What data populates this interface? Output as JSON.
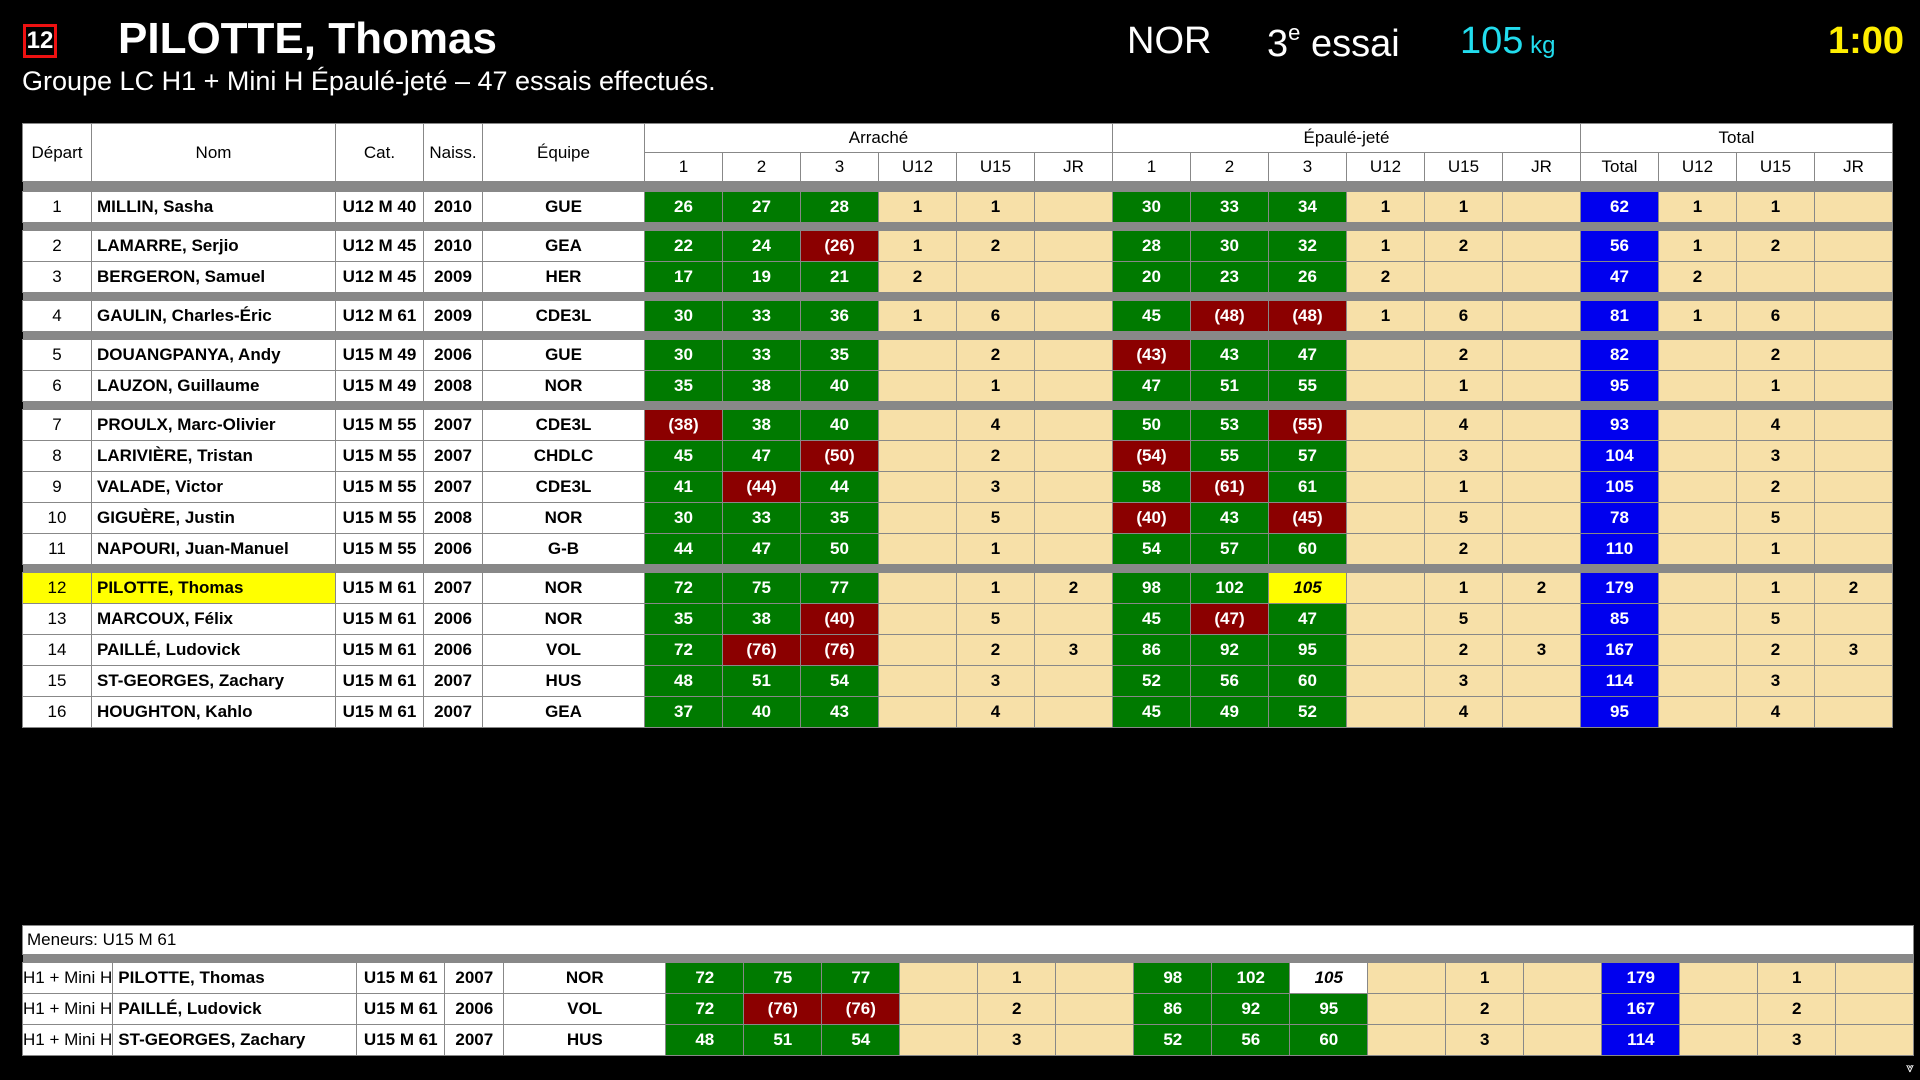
{
  "header": {
    "start_number": "12",
    "athlete": "PILOTTE, Thomas",
    "team": "NOR",
    "attempt_num": "3",
    "attempt_sup": "e",
    "attempt_word": " essai",
    "weight": "105",
    "weight_unit": " kg",
    "clock": "1:00",
    "group_line": "Groupe LC H1 + Mini H Épaulé-jeté – 47 essais effectués."
  },
  "colors": {
    "good": "#007a00",
    "bad": "#8b0000",
    "total": "#0000ee",
    "current": "#ffff00",
    "rank_bg": "#f7e0a8"
  },
  "table": {
    "headers": {
      "start": "Départ",
      "name": "Nom",
      "cat": "Cat.",
      "birth": "Naiss.",
      "team": "Équipe"
    },
    "groups": {
      "snatch": "Arraché",
      "cj": "Épaulé-jeté",
      "total": "Total"
    },
    "sub": [
      "1",
      "2",
      "3",
      "U12",
      "U15",
      "JR",
      "1",
      "2",
      "3",
      "U12",
      "U15",
      "JR",
      "Total",
      "U12",
      "U15",
      "JR"
    ]
  },
  "athletes": [
    {
      "start": "1",
      "name": "MILLIN, Sasha",
      "cat": "U12 M 40",
      "birth": "2010",
      "team": "GUE",
      "sn": [
        [
          "26",
          "g"
        ],
        [
          "27",
          "g"
        ],
        [
          "28",
          "g"
        ]
      ],
      "snr": [
        "1",
        "1",
        ""
      ],
      "cj": [
        [
          "30",
          "g"
        ],
        [
          "33",
          "g"
        ],
        [
          "34",
          "g"
        ]
      ],
      "cjr": [
        "1",
        "1",
        ""
      ],
      "total": "62",
      "tr": [
        "1",
        "1",
        ""
      ],
      "sepBefore": true
    },
    {
      "start": "2",
      "name": "LAMARRE, Serjio",
      "cat": "U12 M 45",
      "birth": "2010",
      "team": "GEA",
      "sn": [
        [
          "22",
          "g"
        ],
        [
          "24",
          "g"
        ],
        [
          "(26)",
          "r"
        ]
      ],
      "snr": [
        "1",
        "2",
        ""
      ],
      "cj": [
        [
          "28",
          "g"
        ],
        [
          "30",
          "g"
        ],
        [
          "32",
          "g"
        ]
      ],
      "cjr": [
        "1",
        "2",
        ""
      ],
      "total": "56",
      "tr": [
        "1",
        "2",
        ""
      ],
      "sepBefore": true
    },
    {
      "start": "3",
      "name": "BERGERON, Samuel",
      "cat": "U12 M 45",
      "birth": "2009",
      "team": "HER",
      "sn": [
        [
          "17",
          "g"
        ],
        [
          "19",
          "g"
        ],
        [
          "21",
          "g"
        ]
      ],
      "snr": [
        "2",
        "",
        ""
      ],
      "cj": [
        [
          "20",
          "g"
        ],
        [
          "23",
          "g"
        ],
        [
          "26",
          "g"
        ]
      ],
      "cjr": [
        "2",
        "",
        ""
      ],
      "total": "47",
      "tr": [
        "2",
        "",
        ""
      ],
      "sepBefore": false
    },
    {
      "start": "4",
      "name": "GAULIN, Charles-Éric",
      "cat": "U12 M 61",
      "birth": "2009",
      "team": "CDE3L",
      "sn": [
        [
          "30",
          "g"
        ],
        [
          "33",
          "g"
        ],
        [
          "36",
          "g"
        ]
      ],
      "snr": [
        "1",
        "6",
        ""
      ],
      "cj": [
        [
          "45",
          "g"
        ],
        [
          "(48)",
          "r"
        ],
        [
          "(48)",
          "r"
        ]
      ],
      "cjr": [
        "1",
        "6",
        ""
      ],
      "total": "81",
      "tr": [
        "1",
        "6",
        ""
      ],
      "sepBefore": true
    },
    {
      "start": "5",
      "name": "DOUANGPANYA, Andy",
      "cat": "U15 M 49",
      "birth": "2006",
      "team": "GUE",
      "sn": [
        [
          "30",
          "g"
        ],
        [
          "33",
          "g"
        ],
        [
          "35",
          "g"
        ]
      ],
      "snr": [
        "",
        "2",
        ""
      ],
      "cj": [
        [
          "(43)",
          "r"
        ],
        [
          "43",
          "g"
        ],
        [
          "47",
          "g"
        ]
      ],
      "cjr": [
        "",
        "2",
        ""
      ],
      "total": "82",
      "tr": [
        "",
        "2",
        ""
      ],
      "sepBefore": true
    },
    {
      "start": "6",
      "name": "LAUZON, Guillaume",
      "cat": "U15 M 49",
      "birth": "2008",
      "team": "NOR",
      "sn": [
        [
          "35",
          "g"
        ],
        [
          "38",
          "g"
        ],
        [
          "40",
          "g"
        ]
      ],
      "snr": [
        "",
        "1",
        ""
      ],
      "cj": [
        [
          "47",
          "g"
        ],
        [
          "51",
          "g"
        ],
        [
          "55",
          "g"
        ]
      ],
      "cjr": [
        "",
        "1",
        ""
      ],
      "total": "95",
      "tr": [
        "",
        "1",
        ""
      ],
      "sepBefore": false
    },
    {
      "start": "7",
      "name": "PROULX, Marc-Olivier",
      "cat": "U15 M 55",
      "birth": "2007",
      "team": "CDE3L",
      "sn": [
        [
          "(38)",
          "r"
        ],
        [
          "38",
          "g"
        ],
        [
          "40",
          "g"
        ]
      ],
      "snr": [
        "",
        "4",
        ""
      ],
      "cj": [
        [
          "50",
          "g"
        ],
        [
          "53",
          "g"
        ],
        [
          "(55)",
          "r"
        ]
      ],
      "cjr": [
        "",
        "4",
        ""
      ],
      "total": "93",
      "tr": [
        "",
        "4",
        ""
      ],
      "sepBefore": true
    },
    {
      "start": "8",
      "name": "LARIVIÈRE, Tristan",
      "cat": "U15 M 55",
      "birth": "2007",
      "team": "CHDLC",
      "sn": [
        [
          "45",
          "g"
        ],
        [
          "47",
          "g"
        ],
        [
          "(50)",
          "r"
        ]
      ],
      "snr": [
        "",
        "2",
        ""
      ],
      "cj": [
        [
          "(54)",
          "r"
        ],
        [
          "55",
          "g"
        ],
        [
          "57",
          "g"
        ]
      ],
      "cjr": [
        "",
        "3",
        ""
      ],
      "total": "104",
      "tr": [
        "",
        "3",
        ""
      ],
      "sepBefore": false
    },
    {
      "start": "9",
      "name": "VALADE, Victor",
      "cat": "U15 M 55",
      "birth": "2007",
      "team": "CDE3L",
      "sn": [
        [
          "41",
          "g"
        ],
        [
          "(44)",
          "r"
        ],
        [
          "44",
          "g"
        ]
      ],
      "snr": [
        "",
        "3",
        ""
      ],
      "cj": [
        [
          "58",
          "g"
        ],
        [
          "(61)",
          "r"
        ],
        [
          "61",
          "g"
        ]
      ],
      "cjr": [
        "",
        "1",
        ""
      ],
      "total": "105",
      "tr": [
        "",
        "2",
        ""
      ],
      "sepBefore": false
    },
    {
      "start": "10",
      "name": "GIGUÈRE, Justin",
      "cat": "U15 M 55",
      "birth": "2008",
      "team": "NOR",
      "sn": [
        [
          "30",
          "g"
        ],
        [
          "33",
          "g"
        ],
        [
          "35",
          "g"
        ]
      ],
      "snr": [
        "",
        "5",
        ""
      ],
      "cj": [
        [
          "(40)",
          "r"
        ],
        [
          "43",
          "g"
        ],
        [
          "(45)",
          "r"
        ]
      ],
      "cjr": [
        "",
        "5",
        ""
      ],
      "total": "78",
      "tr": [
        "",
        "5",
        ""
      ],
      "sepBefore": false
    },
    {
      "start": "11",
      "name": "NAPOURI, Juan-Manuel",
      "cat": "U15 M 55",
      "birth": "2006",
      "team": "G-B",
      "sn": [
        [
          "44",
          "g"
        ],
        [
          "47",
          "g"
        ],
        [
          "50",
          "g"
        ]
      ],
      "snr": [
        "",
        "1",
        ""
      ],
      "cj": [
        [
          "54",
          "g"
        ],
        [
          "57",
          "g"
        ],
        [
          "60",
          "g"
        ]
      ],
      "cjr": [
        "",
        "2",
        ""
      ],
      "total": "110",
      "tr": [
        "",
        "1",
        ""
      ],
      "sepBefore": false
    },
    {
      "start": "12",
      "name": "PILOTTE, Thomas",
      "cat": "U15 M 61",
      "birth": "2007",
      "team": "NOR",
      "current": true,
      "sn": [
        [
          "72",
          "g"
        ],
        [
          "75",
          "g"
        ],
        [
          "77",
          "g"
        ]
      ],
      "snr": [
        "",
        "1",
        "2"
      ],
      "cj": [
        [
          "98",
          "g"
        ],
        [
          "102",
          "g"
        ],
        [
          "105",
          "y"
        ]
      ],
      "cjr": [
        "",
        "1",
        "2"
      ],
      "total": "179",
      "tr": [
        "",
        "1",
        "2"
      ],
      "sepBefore": true
    },
    {
      "start": "13",
      "name": "MARCOUX, Félix",
      "cat": "U15 M 61",
      "birth": "2006",
      "team": "NOR",
      "sn": [
        [
          "35",
          "g"
        ],
        [
          "38",
          "g"
        ],
        [
          "(40)",
          "r"
        ]
      ],
      "snr": [
        "",
        "5",
        ""
      ],
      "cj": [
        [
          "45",
          "g"
        ],
        [
          "(47)",
          "r"
        ],
        [
          "47",
          "g"
        ]
      ],
      "cjr": [
        "",
        "5",
        ""
      ],
      "total": "85",
      "tr": [
        "",
        "5",
        ""
      ],
      "sepBefore": false
    },
    {
      "start": "14",
      "name": "PAILLÉ, Ludovick",
      "cat": "U15 M 61",
      "birth": "2006",
      "team": "VOL",
      "sn": [
        [
          "72",
          "g"
        ],
        [
          "(76)",
          "r"
        ],
        [
          "(76)",
          "r"
        ]
      ],
      "snr": [
        "",
        "2",
        "3"
      ],
      "cj": [
        [
          "86",
          "g"
        ],
        [
          "92",
          "g"
        ],
        [
          "95",
          "g"
        ]
      ],
      "cjr": [
        "",
        "2",
        "3"
      ],
      "total": "167",
      "tr": [
        "",
        "2",
        "3"
      ],
      "sepBefore": false
    },
    {
      "start": "15",
      "name": "ST-GEORGES, Zachary",
      "cat": "U15 M 61",
      "birth": "2007",
      "team": "HUS",
      "sn": [
        [
          "48",
          "g"
        ],
        [
          "51",
          "g"
        ],
        [
          "54",
          "g"
        ]
      ],
      "snr": [
        "",
        "3",
        ""
      ],
      "cj": [
        [
          "52",
          "g"
        ],
        [
          "56",
          "g"
        ],
        [
          "60",
          "g"
        ]
      ],
      "cjr": [
        "",
        "3",
        ""
      ],
      "total": "114",
      "tr": [
        "",
        "3",
        ""
      ],
      "sepBefore": false
    },
    {
      "start": "16",
      "name": "HOUGHTON, Kahlo",
      "cat": "U15 M 61",
      "birth": "2007",
      "team": "GEA",
      "sn": [
        [
          "37",
          "g"
        ],
        [
          "40",
          "g"
        ],
        [
          "43",
          "g"
        ]
      ],
      "snr": [
        "",
        "4",
        ""
      ],
      "cj": [
        [
          "45",
          "g"
        ],
        [
          "49",
          "g"
        ],
        [
          "52",
          "g"
        ]
      ],
      "cjr": [
        "",
        "4",
        ""
      ],
      "total": "95",
      "tr": [
        "",
        "4",
        ""
      ],
      "sepBefore": false
    }
  ],
  "leaders": {
    "caption": "Meneurs: U15 M 61",
    "rows": [
      {
        "start": "H1 + Mini H",
        "name": "PILOTTE, Thomas",
        "cat": "U15 M 61",
        "birth": "2007",
        "team": "NOR",
        "sn": [
          [
            "72",
            "g"
          ],
          [
            "75",
            "g"
          ],
          [
            "77",
            "g"
          ]
        ],
        "snr": [
          "",
          "1",
          ""
        ],
        "cj": [
          [
            "98",
            "g"
          ],
          [
            "102",
            "g"
          ],
          [
            "105",
            "w"
          ]
        ],
        "cjr": [
          "",
          "1",
          ""
        ],
        "total": "179",
        "tr": [
          "",
          "1",
          ""
        ]
      },
      {
        "start": "H1 + Mini H",
        "name": "PAILLÉ, Ludovick",
        "cat": "U15 M 61",
        "birth": "2006",
        "team": "VOL",
        "sn": [
          [
            "72",
            "g"
          ],
          [
            "(76)",
            "r"
          ],
          [
            "(76)",
            "r"
          ]
        ],
        "snr": [
          "",
          "2",
          ""
        ],
        "cj": [
          [
            "86",
            "g"
          ],
          [
            "92",
            "g"
          ],
          [
            "95",
            "g"
          ]
        ],
        "cjr": [
          "",
          "2",
          ""
        ],
        "total": "167",
        "tr": [
          "",
          "2",
          ""
        ]
      },
      {
        "start": "H1 + Mini H",
        "name": "ST-GEORGES, Zachary",
        "cat": "U15 M 61",
        "birth": "2007",
        "team": "HUS",
        "sn": [
          [
            "48",
            "g"
          ],
          [
            "51",
            "g"
          ],
          [
            "54",
            "g"
          ]
        ],
        "snr": [
          "",
          "3",
          ""
        ],
        "cj": [
          [
            "52",
            "g"
          ],
          [
            "56",
            "g"
          ],
          [
            "60",
            "g"
          ]
        ],
        "cjr": [
          "",
          "3",
          ""
        ],
        "total": "114",
        "tr": [
          "",
          "3",
          ""
        ]
      }
    ]
  },
  "corner_icon": "resize-icon",
  "corner_glyph": "⩔"
}
